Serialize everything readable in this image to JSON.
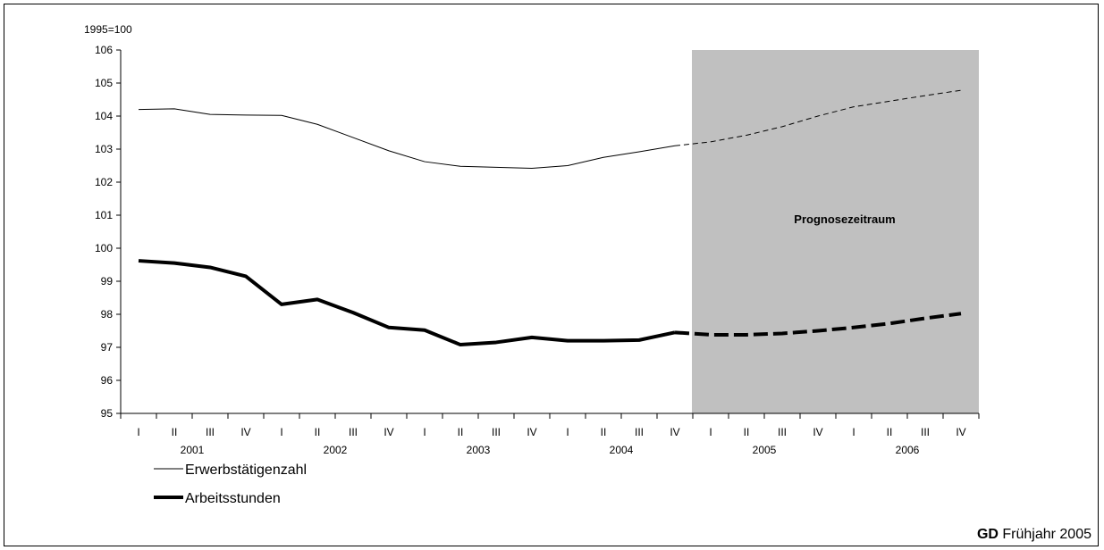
{
  "chart_data": {
    "type": "line",
    "unit_label": "1995=100",
    "ylim": [
      95,
      106
    ],
    "yticks": [
      95,
      96,
      97,
      98,
      99,
      100,
      101,
      102,
      103,
      104,
      105,
      106
    ],
    "x": [
      "2001 I",
      "2001 II",
      "2001 III",
      "2001 IV",
      "2002 I",
      "2002 II",
      "2002 III",
      "2002 IV",
      "2003 I",
      "2003 II",
      "2003 III",
      "2003 IV",
      "2004 I",
      "2004 II",
      "2004 III",
      "2004 IV",
      "2005 I",
      "2005 II",
      "2005 III",
      "2005 IV",
      "2006 I",
      "2006 II",
      "2006 III",
      "2006 IV"
    ],
    "quarter_labels": [
      "I",
      "II",
      "III",
      "IV",
      "I",
      "II",
      "III",
      "IV",
      "I",
      "II",
      "III",
      "IV",
      "I",
      "II",
      "III",
      "IV",
      "I",
      "II",
      "III",
      "IV",
      "I",
      "II",
      "III",
      "IV"
    ],
    "year_labels": [
      "2001",
      "2002",
      "2003",
      "2004",
      "2005",
      "2006"
    ],
    "forecast_label": "Prognosezeitraum",
    "forecast_start_index": 16,
    "series": [
      {
        "name": "Erwerbstätigenzahl",
        "style": "thin",
        "values": [
          104.2,
          104.22,
          104.05,
          104.03,
          104.02,
          103.75,
          103.35,
          102.95,
          102.62,
          102.48,
          102.45,
          102.42,
          102.5,
          102.75,
          102.92,
          103.1,
          103.22,
          103.42,
          103.68,
          104.0,
          104.28,
          104.45,
          104.62,
          104.78
        ]
      },
      {
        "name": "Arbeitsstunden",
        "style": "thick",
        "values": [
          99.62,
          99.55,
          99.42,
          99.15,
          98.3,
          98.45,
          98.05,
          97.6,
          97.52,
          97.08,
          97.15,
          97.3,
          97.2,
          97.2,
          97.22,
          97.45,
          97.38,
          97.38,
          97.42,
          97.5,
          97.6,
          97.72,
          97.88,
          98.02
        ]
      }
    ],
    "grid": false,
    "legend_position": "bottom-left"
  },
  "footer": {
    "source_bold": "GD",
    "source_rest": " Frühjahr 2005"
  }
}
